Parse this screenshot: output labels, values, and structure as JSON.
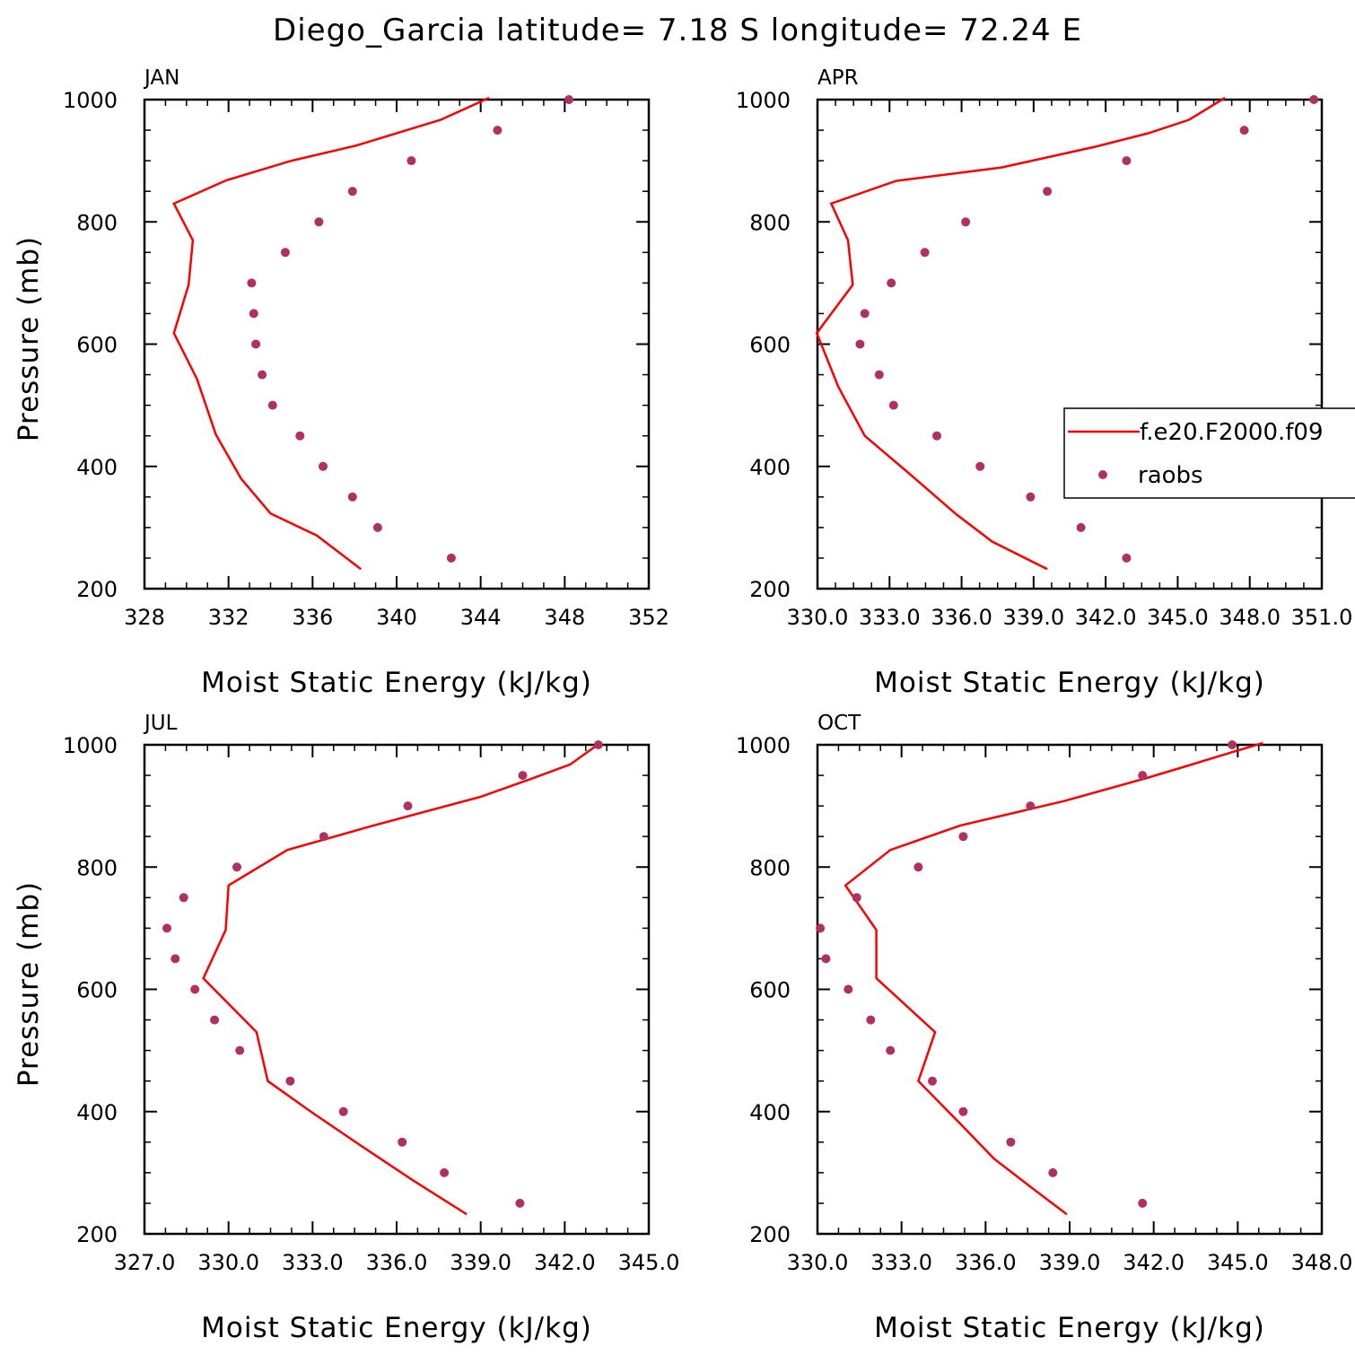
{
  "title": "Diego_Garcia  latitude= 7.18 S longitude= 72.24 E",
  "colors": {
    "model_line": "#ff0000",
    "obs_marker": "#b03060",
    "axis": "#000000"
  },
  "legend": {
    "entries": [
      "f.e20.F2000.f09",
      "raobs"
    ],
    "placement": "right-middle, on APR panel"
  },
  "chart_data": [
    {
      "type": "line",
      "panel_label": "JAN",
      "xlabel": "Moist Static Energy (kJ/kg)",
      "ylabel": "Pressure (mb)",
      "xlim": [
        328,
        352
      ],
      "xticks": [
        "328",
        "332",
        "336",
        "340",
        "344",
        "348",
        "352"
      ],
      "ylim": [
        1000,
        200
      ],
      "yticks": [
        "200",
        "400",
        "600",
        "800",
        "1000"
      ],
      "series": [
        {
          "name": "f.e20.F2000.f09",
          "style": "line",
          "points": [
            [
              338.3,
              232
            ],
            [
              336.2,
              287
            ],
            [
              334.0,
              323
            ],
            [
              332.6,
              380
            ],
            [
              331.4,
              452
            ],
            [
              330.5,
              543
            ],
            [
              329.4,
              618
            ],
            [
              330.1,
              697
            ],
            [
              330.3,
              770
            ],
            [
              329.4,
              830
            ],
            [
              331.9,
              868
            ],
            [
              335.0,
              900
            ],
            [
              338.1,
              925
            ],
            [
              342.1,
              967
            ],
            [
              344.4,
              1003
            ]
          ]
        },
        {
          "name": "raobs",
          "style": "marker",
          "points": [
            [
              342.6,
              250
            ],
            [
              339.1,
              300
            ],
            [
              337.9,
              350
            ],
            [
              336.5,
              400
            ],
            [
              335.4,
              450
            ],
            [
              334.1,
              500
            ],
            [
              333.6,
              550
            ],
            [
              333.3,
              600
            ],
            [
              333.2,
              650
            ],
            [
              333.1,
              700
            ],
            [
              334.7,
              750
            ],
            [
              336.3,
              800
            ],
            [
              337.9,
              850
            ],
            [
              340.7,
              900
            ],
            [
              344.8,
              950
            ],
            [
              348.2,
              1000
            ]
          ]
        }
      ]
    },
    {
      "type": "line",
      "panel_label": "APR",
      "xlabel": "Moist Static Energy (kJ/kg)",
      "ylabel": "",
      "xlim": [
        330.03,
        351.03
      ],
      "xticks": [
        "330.0",
        "333.0",
        "336.0",
        "339.0",
        "342.0",
        "345.0",
        "348.0",
        "351.0"
      ],
      "ylim": [
        1000,
        200
      ],
      "yticks": [
        "200",
        "400",
        "600",
        "800",
        "1000"
      ],
      "series": [
        {
          "name": "f.e20.F2000.f09",
          "style": "line",
          "points": [
            [
              339.6,
              232
            ],
            [
              337.3,
              277
            ],
            [
              335.8,
              322
            ],
            [
              334.1,
              380
            ],
            [
              332.0,
              450
            ],
            [
              330.9,
              530
            ],
            [
              330.0,
              618
            ],
            [
              331.5,
              697
            ],
            [
              331.3,
              770
            ],
            [
              330.6,
              830
            ],
            [
              333.3,
              867
            ],
            [
              337.7,
              889
            ],
            [
              341.6,
              923
            ],
            [
              343.8,
              945
            ],
            [
              345.5,
              967
            ],
            [
              347.0,
              1003
            ]
          ]
        },
        {
          "name": "raobs",
          "style": "marker",
          "points": [
            [
              342.9,
              250
            ],
            [
              341.0,
              300
            ],
            [
              338.9,
              350
            ],
            [
              336.8,
              400
            ],
            [
              335.0,
              450
            ],
            [
              333.2,
              500
            ],
            [
              332.6,
              550
            ],
            [
              331.8,
              600
            ],
            [
              332.0,
              650
            ],
            [
              333.1,
              700
            ],
            [
              334.5,
              750
            ],
            [
              336.2,
              800
            ],
            [
              339.6,
              850
            ],
            [
              342.9,
              900
            ],
            [
              347.8,
              950
            ],
            [
              350.7,
              1000
            ]
          ]
        }
      ]
    },
    {
      "type": "line",
      "panel_label": "JUL",
      "xlabel": "Moist Static Energy (kJ/kg)",
      "ylabel": "Pressure (mb)",
      "xlim": [
        327,
        345
      ],
      "xticks": [
        "327.0",
        "330.0",
        "333.0",
        "336.0",
        "339.0",
        "342.0",
        "345.0"
      ],
      "ylim": [
        1000,
        200
      ],
      "yticks": [
        "200",
        "400",
        "600",
        "800",
        "1000"
      ],
      "series": [
        {
          "name": "f.e20.F2000.f09",
          "style": "line",
          "points": [
            [
              338.5,
              232
            ],
            [
              336.6,
              287
            ],
            [
              334.7,
              345
            ],
            [
              333.0,
              398
            ],
            [
              331.4,
              450
            ],
            [
              331.0,
              530
            ],
            [
              329.1,
              618
            ],
            [
              329.9,
              697
            ],
            [
              330.0,
              770
            ],
            [
              332.1,
              828
            ],
            [
              335.1,
              867
            ],
            [
              339.0,
              915
            ],
            [
              340.9,
              946
            ],
            [
              342.2,
              968
            ],
            [
              343.2,
              1001
            ]
          ]
        },
        {
          "name": "raobs",
          "style": "marker",
          "points": [
            [
              340.4,
              250
            ],
            [
              337.7,
              300
            ],
            [
              336.2,
              350
            ],
            [
              334.1,
              400
            ],
            [
              332.2,
              450
            ],
            [
              330.4,
              500
            ],
            [
              329.5,
              550
            ],
            [
              328.8,
              600
            ],
            [
              328.1,
              650
            ],
            [
              327.8,
              700
            ],
            [
              328.4,
              750
            ],
            [
              330.3,
              800
            ],
            [
              333.4,
              850
            ],
            [
              336.4,
              900
            ],
            [
              340.5,
              950
            ],
            [
              343.2,
              1000
            ]
          ]
        }
      ]
    },
    {
      "type": "line",
      "panel_label": "OCT",
      "xlabel": "Moist Static Energy (kJ/kg)",
      "ylabel": "",
      "xlim": [
        330,
        348
      ],
      "xticks": [
        "330.0",
        "333.0",
        "336.0",
        "339.0",
        "342.0",
        "345.0",
        "348.0"
      ],
      "ylim": [
        1000,
        200
      ],
      "yticks": [
        "200",
        "400",
        "600",
        "800",
        "1000"
      ],
      "series": [
        {
          "name": "f.e20.F2000.f09",
          "style": "line",
          "points": [
            [
              338.9,
              232
            ],
            [
              337.6,
              277
            ],
            [
              336.3,
              323
            ],
            [
              335.1,
              380
            ],
            [
              333.6,
              450
            ],
            [
              334.2,
              530
            ],
            [
              332.1,
              618
            ],
            [
              332.1,
              697
            ],
            [
              331.0,
              770
            ],
            [
              332.6,
              828
            ],
            [
              335.1,
              868
            ],
            [
              338.8,
              908
            ],
            [
              341.7,
              945
            ],
            [
              343.3,
              967
            ],
            [
              344.8,
              988
            ],
            [
              345.9,
              1003
            ]
          ]
        },
        {
          "name": "raobs",
          "style": "marker",
          "points": [
            [
              341.6,
              250
            ],
            [
              338.4,
              300
            ],
            [
              336.9,
              350
            ],
            [
              335.2,
              400
            ],
            [
              334.1,
              450
            ],
            [
              332.6,
              500
            ],
            [
              331.9,
              550
            ],
            [
              331.1,
              600
            ],
            [
              330.3,
              650
            ],
            [
              330.1,
              700
            ],
            [
              331.4,
              750
            ],
            [
              333.6,
              800
            ],
            [
              335.2,
              850
            ],
            [
              337.6,
              900
            ],
            [
              341.6,
              950
            ],
            [
              344.8,
              1000
            ]
          ]
        }
      ]
    }
  ]
}
